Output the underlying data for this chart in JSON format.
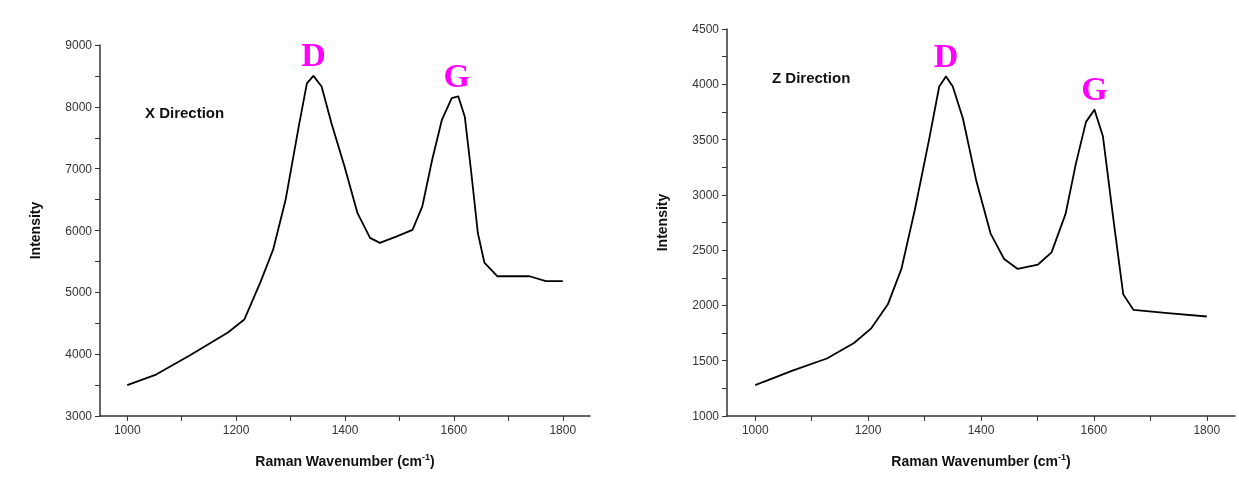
{
  "chart_data": [
    {
      "type": "line",
      "title": "X Direction",
      "xlabel": "Raman Wavenumber (cm$^{-1}$)",
      "ylabel": "Intensity",
      "xlim": [
        950,
        1850
      ],
      "ylim": [
        3000,
        9000
      ],
      "xticks": [
        1000,
        {
          "value": 1100,
          "label": null
        },
        1200,
        {
          "value": 1300,
          "label": null
        },
        1400,
        {
          "value": 1500,
          "label": null
        },
        1600,
        {
          "value": 1700,
          "label": null
        },
        1800
      ],
      "yticks": [
        3000,
        {
          "value": 3500,
          "label": null
        },
        4000,
        {
          "value": 4500,
          "label": null
        },
        5000,
        {
          "value": 5500,
          "label": null
        },
        6000,
        {
          "value": 6500,
          "label": null
        },
        7000,
        {
          "value": 7500,
          "label": null
        },
        8000,
        {
          "value": 8500,
          "label": null
        },
        9000
      ],
      "grid": false,
      "marker": "none",
      "line_style": "solid",
      "annotations": [
        {
          "text": "D",
          "x": 1342,
          "y": 8500
        },
        {
          "text": "G",
          "x": 1605,
          "y": 8170
        }
      ],
      "series": [
        {
          "color": "#000000",
          "x": [
            1000,
            1053,
            1113,
            1185,
            1215,
            1244,
            1268,
            1291,
            1315,
            1330,
            1342,
            1357,
            1375,
            1399,
            1423,
            1446,
            1464,
            1494,
            1524,
            1542,
            1560,
            1578,
            1596,
            1608,
            1620,
            1632,
            1644,
            1656,
            1680,
            1739,
            1769,
            1800
          ],
          "values": [
            3500,
            3670,
            3970,
            4350,
            4560,
            5150,
            5690,
            6500,
            7680,
            8380,
            8500,
            8330,
            7740,
            7040,
            6280,
            5880,
            5800,
            5900,
            6010,
            6390,
            7140,
            7790,
            8140,
            8170,
            7840,
            6930,
            5960,
            5480,
            5260,
            5260,
            5180,
            5180
          ]
        }
      ]
    },
    {
      "type": "line",
      "title": "Z Direction",
      "xlabel": "Raman Wavenumber (cm$^{-1}$)",
      "ylabel": "Intensity",
      "xlim": [
        950,
        1850
      ],
      "ylim": [
        1000,
        4500
      ],
      "xticks": [
        1000,
        {
          "value": 1100,
          "label": null
        },
        1200,
        {
          "value": 1300,
          "label": null
        },
        1400,
        {
          "value": 1500,
          "label": null
        },
        1600,
        {
          "value": 1700,
          "label": null
        },
        1800
      ],
      "yticks": [
        1000,
        {
          "value": 1250,
          "label": null
        },
        1500,
        {
          "value": 1750,
          "label": null
        },
        2000,
        {
          "value": 2250,
          "label": null
        },
        2500,
        {
          "value": 2750,
          "label": null
        },
        3000,
        {
          "value": 3250,
          "label": null
        },
        3500,
        {
          "value": 3750,
          "label": null
        },
        4000,
        {
          "value": 4250,
          "label": null
        },
        4500
      ],
      "grid": false,
      "marker": "none",
      "line_style": "solid",
      "annotations": [
        {
          "text": "D",
          "x": 1338,
          "y": 4070
        },
        {
          "text": "G",
          "x": 1601,
          "y": 3770
        }
      ],
      "series": [
        {
          "color": "#000000",
          "x": [
            1000,
            1066,
            1127,
            1175,
            1205,
            1235,
            1259,
            1283,
            1308,
            1326,
            1338,
            1350,
            1368,
            1392,
            1417,
            1441,
            1465,
            1501,
            1525,
            1550,
            1568,
            1586,
            1601,
            1616,
            1634,
            1652,
            1670,
            1731,
            1800
          ],
          "values": [
            1280,
            1410,
            1520,
            1660,
            1790,
            2010,
            2330,
            2870,
            3500,
            3980,
            4070,
            3980,
            3690,
            3120,
            2650,
            2420,
            2330,
            2370,
            2480,
            2830,
            3280,
            3660,
            3770,
            3530,
            2800,
            2100,
            1960,
            1930,
            1900
          ]
        }
      ]
    }
  ]
}
